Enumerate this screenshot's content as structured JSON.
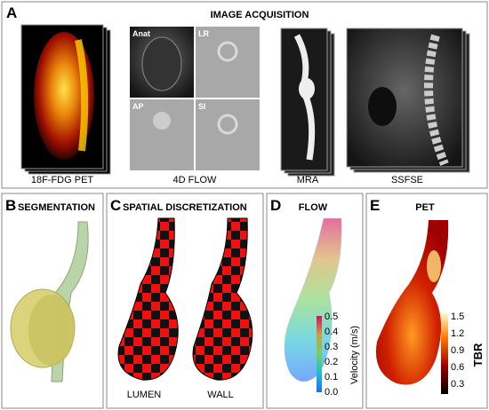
{
  "panel_a": {
    "letter": "A",
    "title": "IMAGE ACQUISITION",
    "captions": [
      "18F-FDG PET",
      "4D FLOW",
      "MRA",
      "SSFSE"
    ],
    "flow_labels": [
      "Anat",
      "LR",
      "AP",
      "SI"
    ]
  },
  "panel_b": {
    "letter": "B",
    "title": "SEGMENTATION"
  },
  "panel_c": {
    "letter": "C",
    "title": "SPATIAL DISCRETIZATION",
    "labels": [
      "LUMEN",
      "WALL"
    ]
  },
  "panel_d": {
    "letter": "D",
    "title": "FLOW",
    "colorbar_label": "Velocity (m/s)",
    "colorbar_ticks": [
      "0.5",
      "0.4",
      "0.3",
      "0.2",
      "0.1",
      "0.0"
    ]
  },
  "panel_e": {
    "letter": "E",
    "title": "PET",
    "colorbar_label": "TBR",
    "colorbar_ticks": [
      "1.5",
      "1.2",
      "0.9",
      "0.6",
      "0.3"
    ]
  }
}
